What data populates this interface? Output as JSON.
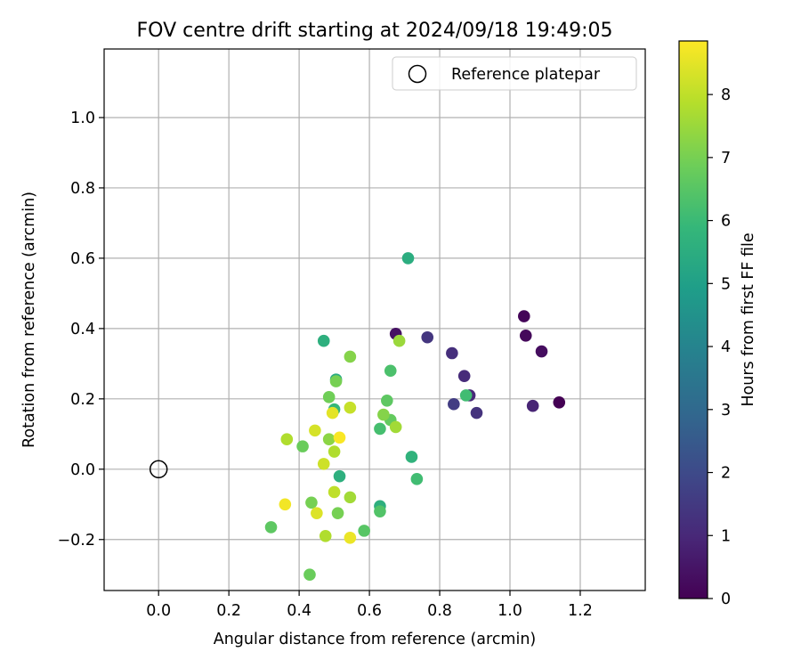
{
  "chart_data": {
    "type": "scatter",
    "title": "FOV centre drift starting at 2024/09/18 19:49:05",
    "xlabel": "Angular distance from reference (arcmin)",
    "ylabel": "Rotation from reference (arcmin)",
    "xlim": [
      -0.155,
      1.385
    ],
    "ylim": [
      -0.345,
      1.195
    ],
    "xticks": [
      "0.0",
      "0.2",
      "0.4",
      "0.6",
      "0.8",
      "1.0",
      "1.2"
    ],
    "xtick_values": [
      0.0,
      0.2,
      0.4,
      0.6,
      0.8,
      1.0,
      1.2
    ],
    "yticks": [
      "−0.2",
      "0.0",
      "0.2",
      "0.4",
      "0.6",
      "0.8",
      "1.0"
    ],
    "ytick_values": [
      -0.2,
      0.0,
      0.2,
      0.4,
      0.6,
      0.8,
      1.0
    ],
    "grid": true,
    "legend": {
      "position": "top-right",
      "entries": [
        "Reference platepar"
      ]
    },
    "reference_point": {
      "x": 0.0,
      "y": 0.0,
      "label": "Reference platepar"
    },
    "colorbar": {
      "label": "Hours from first FF file",
      "range": [
        0,
        8.85
      ],
      "ticks": [
        "0",
        "1",
        "2",
        "3",
        "4",
        "5",
        "6",
        "7",
        "8"
      ],
      "tick_values": [
        0,
        1,
        2,
        3,
        4,
        5,
        6,
        7,
        8
      ],
      "colormap": "viridis"
    },
    "points": [
      {
        "x": 1.14,
        "y": 0.19,
        "t": 0.0
      },
      {
        "x": 1.04,
        "y": 0.435,
        "t": 0.1
      },
      {
        "x": 1.045,
        "y": 0.38,
        "t": 0.2
      },
      {
        "x": 1.09,
        "y": 0.335,
        "t": 0.3
      },
      {
        "x": 0.675,
        "y": 0.385,
        "t": 0.4
      },
      {
        "x": 1.065,
        "y": 0.18,
        "t": 0.9
      },
      {
        "x": 0.885,
        "y": 0.21,
        "t": 1.0
      },
      {
        "x": 0.87,
        "y": 0.265,
        "t": 1.1
      },
      {
        "x": 0.835,
        "y": 0.33,
        "t": 1.2
      },
      {
        "x": 0.905,
        "y": 0.16,
        "t": 1.3
      },
      {
        "x": 0.765,
        "y": 0.375,
        "t": 1.4
      },
      {
        "x": 0.84,
        "y": 0.185,
        "t": 1.6
      },
      {
        "x": 0.71,
        "y": 0.6,
        "t": 5.5
      },
      {
        "x": 0.47,
        "y": 0.365,
        "t": 5.6
      },
      {
        "x": 0.505,
        "y": 0.255,
        "t": 5.4
      },
      {
        "x": 0.72,
        "y": 0.035,
        "t": 5.7
      },
      {
        "x": 0.515,
        "y": -0.02,
        "t": 5.6
      },
      {
        "x": 0.63,
        "y": -0.105,
        "t": 5.6
      },
      {
        "x": 0.5,
        "y": 0.17,
        "t": 5.9
      },
      {
        "x": 0.875,
        "y": 0.21,
        "t": 6.1
      },
      {
        "x": 0.735,
        "y": -0.028,
        "t": 6.1
      },
      {
        "x": 0.63,
        "y": 0.115,
        "t": 6.2
      },
      {
        "x": 0.66,
        "y": 0.28,
        "t": 6.3
      },
      {
        "x": 0.63,
        "y": -0.12,
        "t": 6.4
      },
      {
        "x": 0.585,
        "y": -0.175,
        "t": 6.5
      },
      {
        "x": 0.32,
        "y": -0.165,
        "t": 6.6
      },
      {
        "x": 0.65,
        "y": 0.195,
        "t": 6.6
      },
      {
        "x": 0.66,
        "y": 0.14,
        "t": 6.7
      },
      {
        "x": 0.43,
        "y": -0.3,
        "t": 6.8
      },
      {
        "x": 0.41,
        "y": 0.065,
        "t": 6.8
      },
      {
        "x": 0.485,
        "y": 0.205,
        "t": 6.9
      },
      {
        "x": 0.505,
        "y": 0.25,
        "t": 7.0
      },
      {
        "x": 0.51,
        "y": -0.125,
        "t": 7.0
      },
      {
        "x": 0.435,
        "y": -0.095,
        "t": 7.0
      },
      {
        "x": 0.545,
        "y": 0.32,
        "t": 7.2
      },
      {
        "x": 0.64,
        "y": 0.155,
        "t": 7.2
      },
      {
        "x": 0.485,
        "y": 0.085,
        "t": 7.3
      },
      {
        "x": 0.685,
        "y": 0.365,
        "t": 7.5
      },
      {
        "x": 0.545,
        "y": -0.08,
        "t": 7.6
      },
      {
        "x": 0.675,
        "y": 0.12,
        "t": 7.6
      },
      {
        "x": 0.5,
        "y": 0.05,
        "t": 7.8
      },
      {
        "x": 0.365,
        "y": 0.085,
        "t": 7.8
      },
      {
        "x": 0.475,
        "y": -0.19,
        "t": 7.8
      },
      {
        "x": 0.5,
        "y": -0.065,
        "t": 8.0
      },
      {
        "x": 0.545,
        "y": 0.175,
        "t": 8.1
      },
      {
        "x": 0.47,
        "y": 0.015,
        "t": 8.2
      },
      {
        "x": 0.445,
        "y": 0.11,
        "t": 8.3
      },
      {
        "x": 0.45,
        "y": -0.125,
        "t": 8.4
      },
      {
        "x": 0.495,
        "y": 0.16,
        "t": 8.5
      },
      {
        "x": 0.545,
        "y": -0.195,
        "t": 8.6
      },
      {
        "x": 0.36,
        "y": -0.1,
        "t": 8.7
      },
      {
        "x": 0.515,
        "y": 0.09,
        "t": 8.8
      }
    ]
  }
}
